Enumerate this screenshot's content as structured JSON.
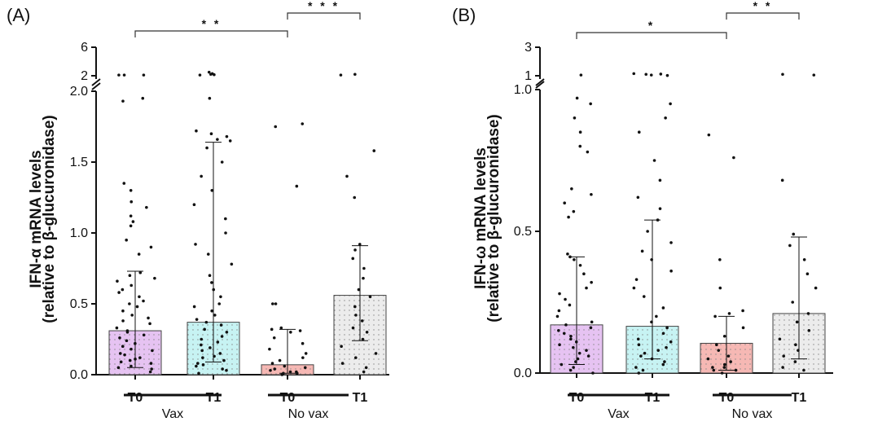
{
  "chart_data": [
    {
      "panel_label": "(A)",
      "type": "bar",
      "ylabel_line1": "IFN-α mRNA levels",
      "ylabel_line2": "(relative to β-glucuronidase)",
      "ylim": [
        0,
        2.0
      ],
      "broken_axis_ticks": [
        2,
        6
      ],
      "yticks": [
        "0.0",
        "0.5",
        "1.0",
        "1.5",
        "2.0"
      ],
      "categories": [
        "T0",
        "T1",
        "T0",
        "T1"
      ],
      "groups": [
        {
          "name": "Vax",
          "span": [
            0,
            1
          ]
        },
        {
          "name": "No vax",
          "span": [
            2,
            3
          ]
        }
      ],
      "values": [
        0.31,
        0.37,
        0.07,
        0.56
      ],
      "error_upper": [
        0.73,
        1.64,
        0.32,
        0.91
      ],
      "error_lower": [
        0.05,
        0.09,
        0.01,
        0.24
      ],
      "bar_colors": [
        "#e6c3f2",
        "#c7f3f3",
        "#f6b8b4",
        "#ececec"
      ],
      "significance": [
        {
          "from": 0,
          "to": 2,
          "label": "* *"
        },
        {
          "from": 2,
          "to": 3,
          "label": "* * *"
        }
      ],
      "points": [
        [
          0.02,
          0.04,
          0.05,
          0.06,
          0.08,
          0.09,
          0.1,
          0.11,
          0.12,
          0.14,
          0.15,
          0.17,
          0.18,
          0.2,
          0.22,
          0.24,
          0.26,
          0.28,
          0.3,
          0.31,
          0.33,
          0.36,
          0.38,
          0.4,
          0.42,
          0.45,
          0.48,
          0.5,
          0.52,
          0.55,
          0.58,
          0.6,
          0.63,
          0.66,
          0.68,
          0.7,
          0.72,
          0.85,
          0.9,
          0.95,
          1.05,
          1.08,
          1.12,
          1.18,
          1.22,
          1.3,
          1.35,
          1.93,
          1.95,
          2.1,
          2.1,
          2.1
        ],
        [
          0.01,
          0.03,
          0.04,
          0.06,
          0.07,
          0.08,
          0.1,
          0.12,
          0.13,
          0.15,
          0.17,
          0.19,
          0.21,
          0.23,
          0.25,
          0.27,
          0.3,
          0.32,
          0.35,
          0.37,
          0.39,
          0.42,
          0.45,
          0.48,
          0.5,
          0.55,
          0.6,
          0.65,
          0.7,
          0.78,
          0.85,
          0.92,
          1.0,
          1.1,
          1.2,
          1.3,
          1.4,
          1.5,
          1.6,
          1.65,
          1.66,
          1.68,
          1.7,
          1.72,
          1.95,
          2.1,
          2.15,
          2.2,
          2.3,
          2.5
        ],
        [
          0.0,
          0.01,
          0.01,
          0.02,
          0.02,
          0.03,
          0.04,
          0.05,
          0.06,
          0.08,
          0.1,
          0.12,
          0.15,
          0.18,
          0.22,
          0.26,
          0.3,
          0.31,
          0.32,
          0.33,
          0.5,
          0.5,
          1.33,
          1.75,
          1.77
        ],
        [
          0.02,
          0.05,
          0.08,
          0.12,
          0.15,
          0.2,
          0.25,
          0.3,
          0.33,
          0.38,
          0.42,
          0.48,
          0.55,
          0.6,
          0.68,
          0.75,
          0.82,
          0.88,
          0.92,
          1.25,
          1.4,
          1.58,
          2.1,
          2.2
        ]
      ]
    },
    {
      "panel_label": "(B)",
      "type": "bar",
      "ylabel_line1": "IFN-ω mRNA levels",
      "ylabel_line2": "(relative to β-glucuronidase)",
      "ylim": [
        0,
        1.0
      ],
      "broken_axis_ticks": [
        1,
        3
      ],
      "yticks": [
        "0.0",
        "0.5",
        "1.0"
      ],
      "categories": [
        "T0",
        "T1",
        "T0",
        "T1"
      ],
      "groups": [
        {
          "name": "Vax",
          "span": [
            0,
            1
          ]
        },
        {
          "name": "No vax",
          "span": [
            2,
            3
          ]
        }
      ],
      "values": [
        0.17,
        0.165,
        0.105,
        0.21
      ],
      "error_upper": [
        0.41,
        0.54,
        0.2,
        0.48
      ],
      "error_lower": [
        0.03,
        0.05,
        0.01,
        0.05
      ],
      "bar_colors": [
        "#e6c3f2",
        "#c7f3f3",
        "#f6b8b4",
        "#ececec"
      ],
      "significance": [
        {
          "from": 0,
          "to": 2,
          "label": "*"
        },
        {
          "from": 2,
          "to": 3,
          "label": "* *"
        }
      ],
      "points": [
        [
          0.0,
          0.01,
          0.02,
          0.03,
          0.04,
          0.05,
          0.06,
          0.07,
          0.08,
          0.09,
          0.1,
          0.11,
          0.12,
          0.13,
          0.14,
          0.15,
          0.16,
          0.17,
          0.18,
          0.2,
          0.22,
          0.24,
          0.26,
          0.28,
          0.3,
          0.32,
          0.35,
          0.38,
          0.4,
          0.41,
          0.42,
          0.55,
          0.57,
          0.6,
          0.63,
          0.65,
          0.78,
          0.8,
          0.85,
          0.9,
          0.95,
          0.97,
          1.05
        ],
        [
          0.0,
          0.01,
          0.02,
          0.03,
          0.04,
          0.05,
          0.06,
          0.07,
          0.08,
          0.09,
          0.1,
          0.11,
          0.12,
          0.14,
          0.16,
          0.18,
          0.2,
          0.23,
          0.27,
          0.3,
          0.33,
          0.36,
          0.4,
          0.43,
          0.46,
          0.5,
          0.54,
          0.58,
          0.62,
          0.68,
          0.75,
          0.85,
          0.9,
          0.95,
          1.02,
          1.05,
          1.1,
          1.12,
          1.15
        ],
        [
          0.0,
          0.01,
          0.01,
          0.02,
          0.02,
          0.03,
          0.04,
          0.05,
          0.06,
          0.08,
          0.1,
          0.13,
          0.16,
          0.2,
          0.21,
          0.22,
          0.3,
          0.4,
          0.76,
          0.84
        ],
        [
          0.01,
          0.02,
          0.04,
          0.06,
          0.08,
          0.1,
          0.12,
          0.15,
          0.18,
          0.21,
          0.25,
          0.3,
          0.35,
          0.4,
          0.45,
          0.49,
          0.68,
          1.05,
          1.1
        ]
      ]
    }
  ]
}
